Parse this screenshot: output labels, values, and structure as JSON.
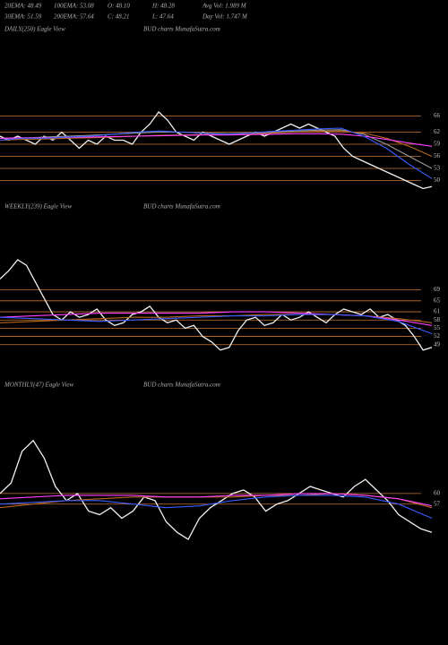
{
  "header": {
    "row1": [
      "20EMA: 48.49",
      "100EMA: 53.08",
      "O: 48.10",
      "H: 48.28",
      "Avg Vol: 1.989 M"
    ],
    "row2": [
      "30EMA: 51.59",
      "200EMA: 57.64",
      "C: 48.21",
      "L: 47.64",
      "Day Vol: 1.747 M"
    ]
  },
  "chart_data": [
    {
      "type": "line",
      "title": "DAILY(250) Eagle View",
      "subtitle": "BUD charts MunafaSutra.com",
      "ylim": [
        47,
        67
      ],
      "yticks": [
        66,
        62,
        59,
        56,
        53,
        50
      ],
      "tick_color": "#c87533",
      "series": [
        {
          "color": "#f0f0f0",
          "values": [
            61,
            60,
            61,
            60,
            59,
            61,
            60,
            62,
            60,
            58,
            60,
            59,
            61,
            60,
            60,
            59,
            62,
            64,
            67,
            65,
            62,
            61,
            60,
            62,
            61,
            60,
            59,
            60,
            61,
            62,
            61,
            62,
            63,
            64,
            63,
            64,
            63,
            62,
            61,
            58,
            56,
            55,
            54,
            53,
            52,
            51,
            50,
            49,
            48,
            48.5
          ]
        },
        {
          "color": "#9a9a9a",
          "values": [
            60.5,
            60.5,
            60.8,
            61,
            61.2,
            61.5,
            61.8,
            62,
            62,
            61.8,
            61.6,
            61.8,
            62,
            62.3,
            62.5,
            62.6,
            61.5,
            59,
            56,
            53
          ]
        },
        {
          "color": "#b5651d",
          "values": [
            60,
            60.2,
            60.3,
            60.5,
            60.6,
            60.8,
            61,
            61.2,
            61.3,
            61.4,
            61.4,
            61.5,
            61.8,
            62,
            62.2,
            62.3,
            61.8,
            60.5,
            58.5,
            56
          ]
        },
        {
          "color": "#ff40ff",
          "values": [
            60.5,
            60.6,
            60.6,
            60.7,
            60.8,
            60.9,
            61,
            61.1,
            61.2,
            61.3,
            61.3,
            61.4,
            61.5,
            61.6,
            61.6,
            61.5,
            61,
            60.2,
            59.3,
            58.5
          ]
        },
        {
          "color": "#3a5bff",
          "values": [
            60,
            60.5,
            60.5,
            60.8,
            61,
            61.5,
            62,
            62.3,
            62,
            61.7,
            61.5,
            61.8,
            62.2,
            62.5,
            62.8,
            63,
            61,
            58,
            54,
            50.5
          ]
        }
      ]
    },
    {
      "type": "line",
      "title": "WEEKLY(239) Eagle View",
      "subtitle": "BUD charts MunafaSutra.com",
      "ylim": [
        44,
        80
      ],
      "yticks": [
        69,
        65,
        61,
        58,
        55,
        52,
        49
      ],
      "tick_color": "#c87533",
      "series": [
        {
          "color": "#f0f0f0",
          "values": [
            73,
            76,
            80,
            78,
            72,
            66,
            60,
            58,
            61,
            59,
            60,
            62,
            58,
            56,
            57,
            60,
            61,
            63,
            59,
            57,
            58,
            55,
            56,
            52,
            50,
            47,
            48,
            54,
            58,
            59,
            56,
            57,
            60,
            58,
            59,
            61,
            59,
            57,
            60,
            62,
            61,
            60,
            62,
            59,
            60,
            58,
            56,
            52,
            47,
            48
          ]
        },
        {
          "color": "#b5651d",
          "values": [
            57,
            57.5,
            58,
            58.5,
            59,
            59,
            59.5,
            59.5,
            60,
            60,
            60,
            59.5,
            58.5,
            57
          ]
        },
        {
          "color": "#ff40ff",
          "values": [
            59,
            59.5,
            60,
            60.5,
            60.5,
            60.5,
            60.5,
            61,
            61,
            60.5,
            60,
            59.5,
            58,
            56
          ]
        },
        {
          "color": "#3a5bff",
          "values": [
            59,
            58.5,
            58,
            57.5,
            58,
            58.5,
            59,
            59.5,
            59.5,
            60,
            60,
            59.5,
            57.5,
            53
          ]
        }
      ]
    },
    {
      "type": "line",
      "title": "MONTHLY(47) Eagle View",
      "subtitle": "BUD charts MunafaSutra.com",
      "ylim": [
        45,
        78
      ],
      "yticks": [
        60,
        57
      ],
      "tick_color": "#c87533",
      "series": [
        {
          "color": "#f0f0f0",
          "values": [
            60,
            63,
            72,
            75,
            70,
            62,
            58,
            60,
            55,
            54,
            56,
            53,
            55,
            59,
            58,
            52,
            49,
            47,
            53,
            56,
            58,
            60,
            61,
            59,
            55,
            57,
            58,
            60,
            62,
            61,
            60,
            59,
            62,
            64,
            61,
            58,
            54,
            52,
            50,
            49
          ]
        },
        {
          "color": "#b5651d",
          "values": [
            56,
            57,
            58,
            58.5,
            59,
            59,
            59,
            59,
            59.5,
            59.5,
            60,
            59.5,
            58.5,
            56
          ]
        },
        {
          "color": "#ff40ff",
          "values": [
            58.5,
            59,
            59.5,
            59.5,
            59.5,
            59,
            59,
            59.5,
            59.5,
            60,
            60,
            59.5,
            58.5,
            56.5
          ]
        },
        {
          "color": "#3a5bff",
          "values": [
            57,
            57.5,
            58,
            58,
            57,
            56,
            56.5,
            58,
            59,
            59.5,
            59.5,
            59,
            57,
            53
          ]
        }
      ]
    }
  ]
}
